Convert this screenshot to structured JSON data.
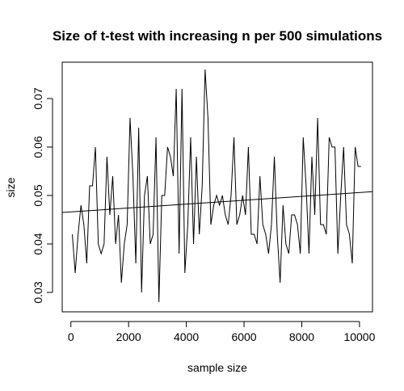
{
  "chart_data": {
    "type": "line",
    "title": "Size of t-test with increasing n per 500 simulations",
    "xlabel": "sample size",
    "ylabel": "size",
    "xlim": [
      -300,
      10450
    ],
    "ylim": [
      0.026,
      0.0775
    ],
    "x_ticks": [
      0,
      2000,
      4000,
      6000,
      8000,
      10000
    ],
    "x_tick_labels": [
      "0",
      "2000",
      "4000",
      "6000",
      "8000",
      "10000"
    ],
    "y_ticks": [
      0.03,
      0.04,
      0.05,
      0.06,
      0.07
    ],
    "y_tick_labels": [
      "0.03",
      "0.04",
      "0.05",
      "0.06",
      "0.07"
    ],
    "grid": false,
    "series": [
      {
        "x": [
          50,
          150,
          250,
          350,
          450,
          550,
          650,
          750,
          850,
          950,
          1050,
          1150,
          1250,
          1350,
          1450,
          1550,
          1650,
          1750,
          1850,
          1950,
          2050,
          2150,
          2250,
          2350,
          2450,
          2550,
          2650,
          2750,
          2850,
          2950,
          3050,
          3150,
          3250,
          3350,
          3450,
          3550,
          3650,
          3750,
          3850,
          3950,
          4050,
          4150,
          4250,
          4350,
          4450,
          4550,
          4650,
          4750,
          4850,
          4950,
          5050,
          5150,
          5250,
          5350,
          5450,
          5550,
          5650,
          5750,
          5850,
          5950,
          6050,
          6150,
          6250,
          6350,
          6450,
          6550,
          6650,
          6750,
          6850,
          6950,
          7050,
          7150,
          7250,
          7350,
          7450,
          7550,
          7650,
          7750,
          7850,
          7950,
          8050,
          8150,
          8250,
          8350,
          8450,
          8550,
          8650,
          8750,
          8850,
          8950,
          9050,
          9150,
          9250,
          9350,
          9450,
          9550,
          9650,
          9750,
          9850,
          9950,
          10050
        ],
        "values": [
          0.042,
          0.034,
          0.042,
          0.048,
          0.044,
          0.036,
          0.052,
          0.052,
          0.06,
          0.04,
          0.038,
          0.04,
          0.058,
          0.046,
          0.054,
          0.04,
          0.046,
          0.032,
          0.04,
          0.044,
          0.066,
          0.054,
          0.036,
          0.064,
          0.03,
          0.05,
          0.054,
          0.04,
          0.042,
          0.062,
          0.028,
          0.05,
          0.05,
          0.06,
          0.058,
          0.054,
          0.072,
          0.038,
          0.072,
          0.034,
          0.044,
          0.062,
          0.04,
          0.058,
          0.042,
          0.052,
          0.076,
          0.066,
          0.044,
          0.048,
          0.05,
          0.048,
          0.05,
          0.046,
          0.044,
          0.05,
          0.062,
          0.044,
          0.046,
          0.05,
          0.046,
          0.06,
          0.042,
          0.042,
          0.04,
          0.054,
          0.044,
          0.042,
          0.038,
          0.044,
          0.058,
          0.042,
          0.032,
          0.048,
          0.04,
          0.038,
          0.046,
          0.046,
          0.044,
          0.038,
          0.062,
          0.052,
          0.038,
          0.058,
          0.046,
          0.066,
          0.044,
          0.044,
          0.042,
          0.062,
          0.06,
          0.06,
          0.038,
          0.05,
          0.06,
          0.044,
          0.042,
          0.036,
          0.06,
          0.056,
          0.056
        ]
      },
      {
        "type": "line",
        "x": [
          -300,
          10450
        ],
        "values": [
          0.0465,
          0.0508
        ]
      }
    ]
  }
}
